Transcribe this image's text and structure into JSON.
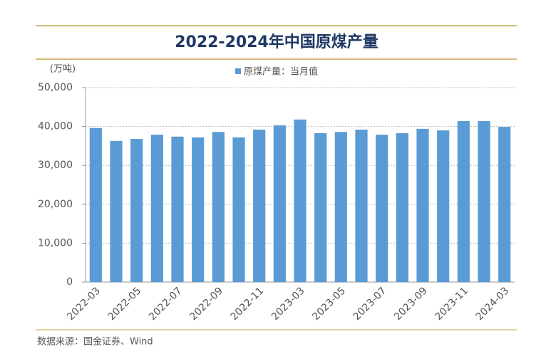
{
  "chart_data": {
    "type": "bar",
    "title": "2022-2024年中国原煤产量",
    "y_unit_label": "(万吨)",
    "source": "数据来源：国金证券、Wind",
    "categories": [
      "2022-03",
      null,
      "2022-05",
      null,
      "2022-07",
      null,
      "2022-09",
      null,
      "2022-11",
      null,
      "2023-03",
      null,
      "2023-05",
      null,
      "2023-07",
      null,
      "2023-09",
      null,
      "2023-11",
      null,
      "2024-03"
    ],
    "series": [
      {
        "name": "原煤产量：当月值",
        "color": "#5b9bd5",
        "values": [
          39600,
          36300,
          36800,
          37900,
          37400,
          37200,
          38600,
          37200,
          39200,
          40300,
          41800,
          38300,
          38600,
          39200,
          37900,
          38300,
          39400,
          39000,
          41400,
          41400,
          39900
        ]
      }
    ],
    "ylim": [
      0,
      50000
    ],
    "yticks": [
      0,
      {
        "value": 10000,
        "label": "10,000"
      },
      {
        "value": 20000,
        "label": "20,000"
      },
      {
        "value": 30000,
        "label": "30,000"
      },
      {
        "value": 40000,
        "label": "40,000"
      },
      {
        "value": 50000,
        "label": "50,000"
      }
    ],
    "grid": true,
    "legend": "top"
  }
}
